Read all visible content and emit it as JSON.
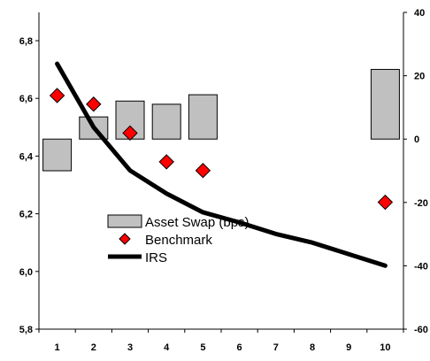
{
  "chart_data": {
    "type": "bar",
    "categories": [
      "1",
      "2",
      "3",
      "4",
      "5",
      "6",
      "7",
      "8",
      "9",
      "10"
    ],
    "left_axis": {
      "ylim": [
        5.8,
        6.9
      ],
      "ticks": [
        "5,8",
        "6,0",
        "6,2",
        "6,4",
        "6,6",
        "6,8"
      ],
      "tick_values": [
        5.8,
        6.0,
        6.2,
        6.4,
        6.6,
        6.8
      ]
    },
    "right_axis": {
      "ylim": [
        -60,
        40
      ],
      "ticks": [
        "-60",
        "-40",
        "-20",
        "0",
        "20",
        "40"
      ],
      "tick_values": [
        -60,
        -40,
        -20,
        0,
        20,
        40
      ]
    },
    "series": [
      {
        "name": "Asset Swap (bps)",
        "kind": "bar",
        "axis": "right",
        "color": "#c0c0c0",
        "points": [
          [
            1,
            -10
          ],
          [
            2,
            7
          ],
          [
            3,
            12
          ],
          [
            4,
            11
          ],
          [
            5,
            14
          ],
          [
            10,
            22
          ]
        ]
      },
      {
        "name": "Benchmark",
        "kind": "marker",
        "axis": "left",
        "color": "#ff0000",
        "points": [
          [
            1,
            6.61
          ],
          [
            2,
            6.58
          ],
          [
            3,
            6.48
          ],
          [
            4,
            6.38
          ],
          [
            5,
            6.35
          ],
          [
            10,
            6.24
          ]
        ]
      },
      {
        "name": "IRS",
        "kind": "line",
        "axis": "left",
        "color": "#000000",
        "points": [
          [
            1,
            6.72
          ],
          [
            2,
            6.5
          ],
          [
            3,
            6.35
          ],
          [
            4,
            6.27
          ],
          [
            5,
            6.205
          ],
          [
            6,
            6.17
          ],
          [
            7,
            6.13
          ],
          [
            8,
            6.1
          ],
          [
            9,
            6.06
          ],
          [
            10,
            6.02
          ]
        ]
      }
    ],
    "legend": [
      "Asset Swap (bps)",
      "Benchmark",
      "IRS"
    ],
    "legend_position": "center-left",
    "grid": false
  }
}
